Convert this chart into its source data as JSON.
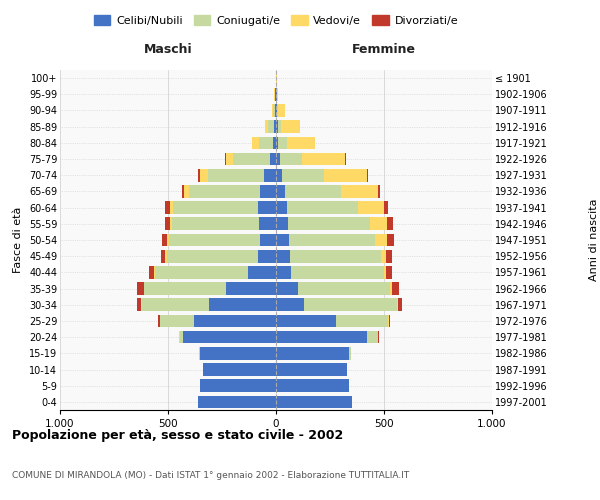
{
  "age_groups": [
    "0-4",
    "5-9",
    "10-14",
    "15-19",
    "20-24",
    "25-29",
    "30-34",
    "35-39",
    "40-44",
    "45-49",
    "50-54",
    "55-59",
    "60-64",
    "65-69",
    "70-74",
    "75-79",
    "80-84",
    "85-89",
    "90-94",
    "95-99",
    "100+"
  ],
  "birth_years": [
    "1997-2001",
    "1992-1996",
    "1987-1991",
    "1982-1986",
    "1977-1981",
    "1972-1976",
    "1967-1971",
    "1962-1966",
    "1957-1961",
    "1952-1956",
    "1947-1951",
    "1942-1946",
    "1937-1941",
    "1932-1936",
    "1927-1931",
    "1922-1926",
    "1917-1921",
    "1912-1916",
    "1907-1911",
    "1902-1906",
    "≤ 1901"
  ],
  "males": {
    "celibi": [
      360,
      350,
      340,
      350,
      430,
      380,
      310,
      230,
      130,
      85,
      75,
      80,
      85,
      75,
      55,
      30,
      15,
      8,
      5,
      3,
      2
    ],
    "coniugati": [
      0,
      0,
      0,
      5,
      15,
      155,
      310,
      380,
      430,
      420,
      420,
      400,
      390,
      330,
      260,
      170,
      65,
      30,
      10,
      2,
      0
    ],
    "vedovi": [
      0,
      0,
      0,
      0,
      2,
      3,
      3,
      3,
      5,
      8,
      10,
      10,
      15,
      20,
      35,
      30,
      30,
      15,
      5,
      2,
      0
    ],
    "divorziati": [
      0,
      0,
      0,
      0,
      3,
      8,
      20,
      30,
      25,
      20,
      25,
      25,
      25,
      10,
      10,
      5,
      0,
      0,
      0,
      0,
      0
    ]
  },
  "females": {
    "nubili": [
      350,
      340,
      330,
      340,
      420,
      280,
      130,
      100,
      70,
      65,
      60,
      55,
      50,
      40,
      30,
      20,
      10,
      8,
      5,
      3,
      2
    ],
    "coniugate": [
      0,
      0,
      0,
      5,
      50,
      240,
      430,
      430,
      430,
      420,
      400,
      380,
      330,
      260,
      190,
      100,
      40,
      15,
      5,
      0,
      0
    ],
    "vedove": [
      0,
      0,
      0,
      0,
      3,
      5,
      5,
      5,
      10,
      25,
      55,
      80,
      120,
      170,
      200,
      200,
      130,
      90,
      30,
      5,
      2
    ],
    "divorziate": [
      0,
      0,
      0,
      0,
      3,
      5,
      20,
      35,
      25,
      25,
      30,
      25,
      20,
      10,
      5,
      5,
      0,
      0,
      0,
      0,
      0
    ]
  },
  "colors": {
    "celibi_nubili": "#4472C4",
    "coniugati": "#c5d9a0",
    "vedovi": "#FFD966",
    "divorziati": "#C0392B"
  },
  "title": "Popolazione per età, sesso e stato civile - 2002",
  "subtitle": "COMUNE DI MIRANDOLA (MO) - Dati ISTAT 1° gennaio 2002 - Elaborazione TUTTITALIA.IT",
  "xlabel_left": "Maschi",
  "xlabel_right": "Femmine",
  "ylabel_left": "Fasce di età",
  "ylabel_right": "Anni di nascita",
  "xlim": 1000,
  "bg_color": "#f9f9f9",
  "grid_color": "#cccccc"
}
